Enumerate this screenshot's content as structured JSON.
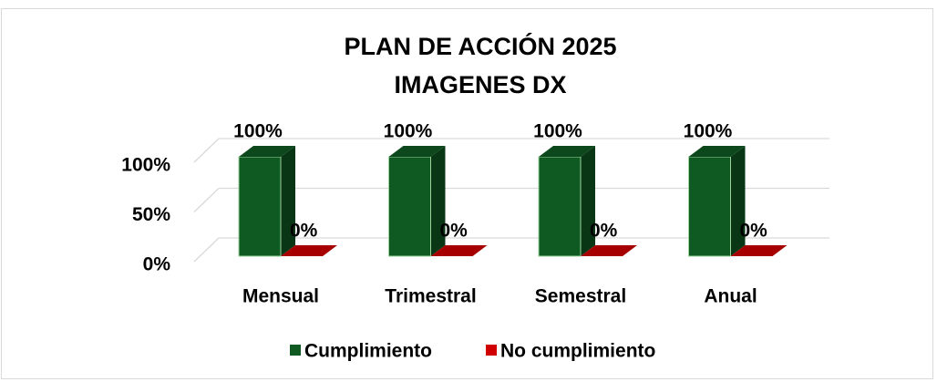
{
  "chart_data": {
    "type": "bar3d",
    "title": [
      "PLAN DE ACCIÓN 2025",
      "IMAGENES DX"
    ],
    "categories": [
      "Mensual",
      "Trimestral",
      "Semestral",
      "Anual"
    ],
    "series": [
      {
        "name": "Cumplimiento",
        "color": "#0f5a23",
        "values": [
          100,
          100,
          100,
          100
        ],
        "value_labels": [
          "100%",
          "100%",
          "100%",
          "100%"
        ]
      },
      {
        "name": "No cumplimiento",
        "color": "#d00000",
        "values": [
          0,
          0,
          0,
          0
        ],
        "value_labels": [
          "0%",
          "0%",
          "0%",
          "0%"
        ]
      }
    ],
    "ylim": [
      0,
      100
    ],
    "yticks": [
      {
        "value": 0,
        "label": "0%"
      },
      {
        "value": 50,
        "label": "50%"
      },
      {
        "value": 100,
        "label": "100%"
      }
    ],
    "grid": true,
    "legend": "bottom"
  }
}
